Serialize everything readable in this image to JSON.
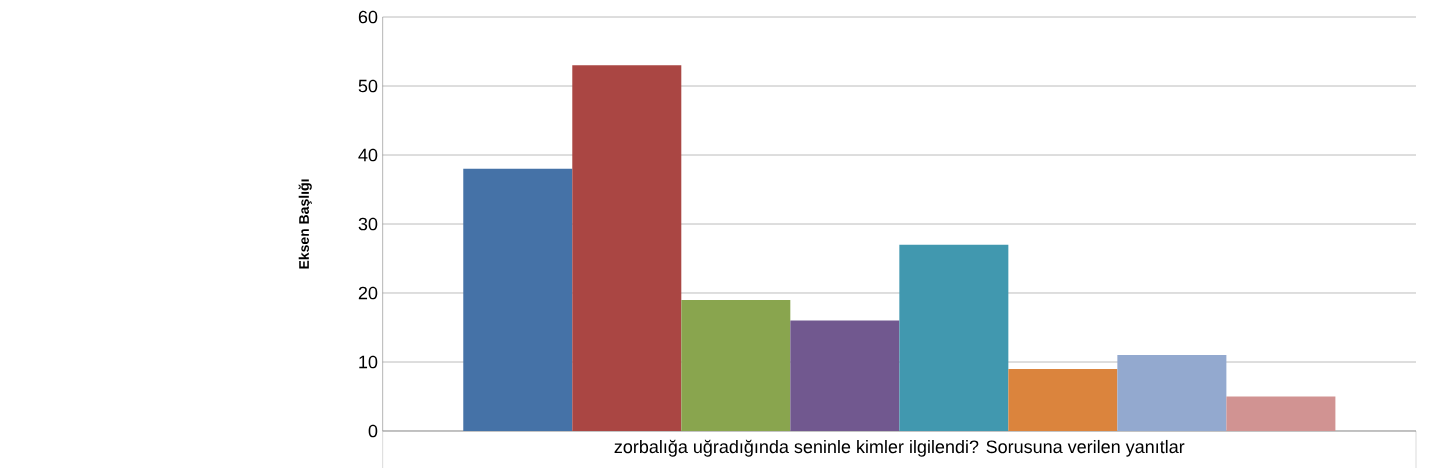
{
  "chart_data": {
    "type": "bar",
    "ylabel": "Eksen Başlığı",
    "categories": [
      "zorbalığa uğradığında seninle kimler ilgilendi? Sorusuna verilen yanıtlar"
    ],
    "series": [
      {
        "color": "#4572a7",
        "values": [
          38
        ]
      },
      {
        "color": "#aa4643",
        "values": [
          53
        ]
      },
      {
        "color": "#89a54e",
        "values": [
          19
        ]
      },
      {
        "color": "#71588f",
        "values": [
          16
        ]
      },
      {
        "color": "#4198af",
        "values": [
          27
        ]
      },
      {
        "color": "#db843d",
        "values": [
          9
        ]
      },
      {
        "color": "#93a9cf",
        "values": [
          11
        ]
      },
      {
        "color": "#d19392",
        "values": [
          5
        ]
      }
    ],
    "ylim": [
      0,
      60
    ],
    "yticks": [
      0,
      10,
      20,
      30,
      40,
      50,
      60
    ],
    "grid": "y"
  }
}
